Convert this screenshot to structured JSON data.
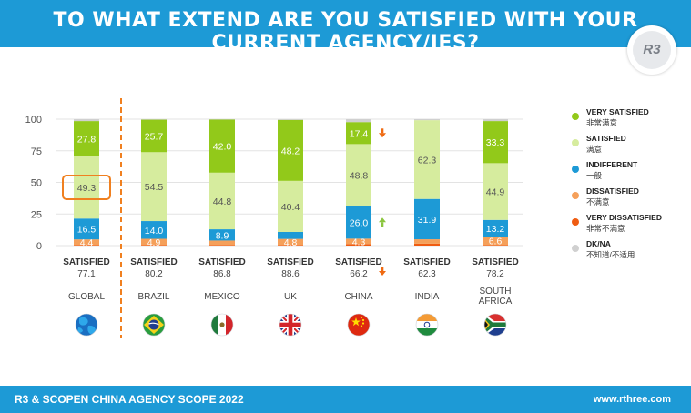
{
  "header": {
    "title": "TO WHAT EXTEND ARE YOU SATISFIED WITH YOUR CURRENT AGENCY/IES?"
  },
  "logo": {
    "text": "R3"
  },
  "footer": {
    "left": "R3 & SCOPEN CHINA AGENCY SCOPE 2022",
    "right": "www.rthree.com"
  },
  "colors": {
    "very_satisfied": "#92c91a",
    "satisfied": "#d6ec9e",
    "indifferent": "#1d9ad6",
    "dissatisfied": "#f5a05a",
    "very_dissatisfied": "#ef5c12",
    "dk_na": "#d0d0d0",
    "highlight": "#f08020",
    "arrow_up": "#8bc53f",
    "arrow_down": "#ef6a12"
  },
  "legend": [
    {
      "key": "very_satisfied",
      "en": "VERY SATISFIED",
      "cn": "非常满意"
    },
    {
      "key": "satisfied",
      "en": "SATISFIED",
      "cn": "满意"
    },
    {
      "key": "indifferent",
      "en": "INDIFFERENT",
      "cn": "一般"
    },
    {
      "key": "dissatisfied",
      "en": "DISSATISFIED",
      "cn": "不满意"
    },
    {
      "key": "very_dissatisfied",
      "en": "VERY DISSATISFIED",
      "cn": "非常不满意"
    },
    {
      "key": "dk_na",
      "en": "DK/NA",
      "cn": "不知道/不适用"
    }
  ],
  "chart_data": {
    "type": "bar",
    "stacked": true,
    "ylim": [
      0,
      100
    ],
    "yticks": [
      0,
      25,
      50,
      75,
      100
    ],
    "categories": [
      "GLOBAL",
      "BRAZIL",
      "MEXICO",
      "UK",
      "CHINA",
      "INDIA",
      "SOUTH AFRICA"
    ],
    "category_lines": [
      [
        "GLOBAL"
      ],
      [
        "BRAZIL"
      ],
      [
        "MEXICO"
      ],
      [
        "UK"
      ],
      [
        "CHINA"
      ],
      [
        "INDIA"
      ],
      [
        "SOUTH",
        "AFRICA"
      ]
    ],
    "flags": [
      "globe-icon",
      "brazil-flag-icon",
      "mexico-flag-icon",
      "uk-flag-icon",
      "china-flag-icon",
      "india-flag-icon",
      "south-africa-flag-icon"
    ],
    "series": [
      {
        "name": "VERY DISSATISFIED",
        "key": "very_dissatisfied",
        "values": [
          0.5,
          0.5,
          0.5,
          0.5,
          1.2,
          1.5,
          0.5
        ],
        "labels": [
          "",
          "",
          "",
          "",
          "",
          "",
          ""
        ]
      },
      {
        "name": "DISSATISFIED",
        "key": "dissatisfied",
        "values": [
          4.4,
          4.9,
          3.5,
          4.8,
          4.3,
          3.5,
          6.6
        ],
        "labels": [
          "4.4",
          "4.9",
          "",
          "4.8",
          "4.3",
          "",
          "6.6"
        ]
      },
      {
        "name": "INDIFFERENT",
        "key": "indifferent",
        "values": [
          16.5,
          14.0,
          8.9,
          5.5,
          26.0,
          31.9,
          13.2
        ],
        "labels": [
          "16.5",
          "14.0",
          "8.9",
          "",
          "26.0",
          "31.9",
          "13.2"
        ]
      },
      {
        "name": "SATISFIED",
        "key": "satisfied",
        "values": [
          49.3,
          54.5,
          44.8,
          40.4,
          48.8,
          62.3,
          44.9
        ],
        "labels": [
          "49.3",
          "54.5",
          "44.8",
          "40.4",
          "48.8",
          "62.3",
          "44.9"
        ]
      },
      {
        "name": "VERY SATISFIED",
        "key": "very_satisfied",
        "values": [
          27.8,
          25.7,
          42.0,
          48.2,
          17.4,
          0.0,
          33.3
        ],
        "labels": [
          "27.8",
          "25.7",
          "42.0",
          "48.2",
          "17.4",
          "",
          "33.3"
        ]
      },
      {
        "name": "DK/NA",
        "key": "dk_na",
        "values": [
          1.5,
          0.4,
          0.3,
          0.6,
          2.3,
          0.8,
          1.5
        ],
        "labels": [
          "",
          "",
          "",
          "",
          "",
          "",
          ""
        ]
      }
    ],
    "satisfied_label": "SATISFIED",
    "satisfied_totals": [
      "77.1",
      "80.2",
      "86.8",
      "88.6",
      "66.2",
      "62.3",
      "78.2"
    ],
    "annotations": [
      {
        "category": "CHINA",
        "series": "VERY SATISFIED",
        "arrow": "down"
      },
      {
        "category": "CHINA",
        "series": "INDIFFERENT",
        "arrow": "up"
      },
      {
        "category": "CHINA",
        "series": "SATISFIED TOTAL",
        "arrow": "down"
      }
    ],
    "highlight": {
      "category": "GLOBAL",
      "series": "SATISFIED"
    }
  }
}
